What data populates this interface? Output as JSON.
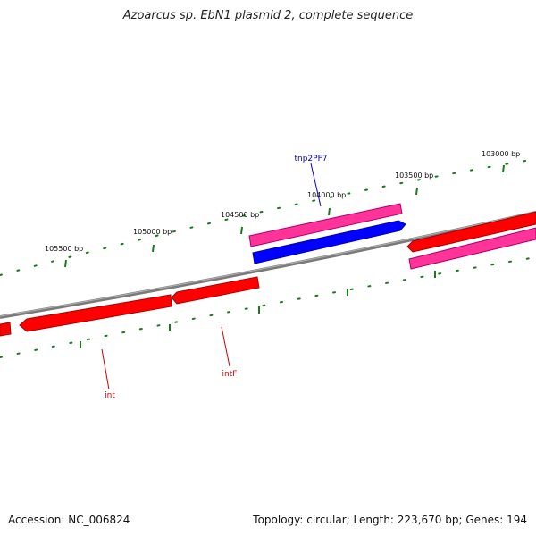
{
  "header": {
    "title": "Azoarcus sp. EbN1 plasmid 2, complete sequence"
  },
  "footer": {
    "accession": "Accession: NC_006824",
    "summary": "Topology: circular; Length: 223,670 bp; Genes: 194"
  },
  "ticks": [
    {
      "label": "103000 bp"
    },
    {
      "label": "103500 bp"
    },
    {
      "label": "104000 bp"
    },
    {
      "label": "104500 bp"
    },
    {
      "label": "105000 bp"
    },
    {
      "label": "105500 bp"
    }
  ],
  "gene_labels": [
    {
      "label": "tnp2PF7",
      "color": "#0000cc"
    },
    {
      "label": "intF",
      "color": "#cc0000"
    },
    {
      "label": "int",
      "color": "#cc0000"
    }
  ],
  "colors": {
    "backbone": "#808080",
    "tick": "#1a7a1a",
    "gene_red": "#ff0000",
    "gene_pink": "#ff3399",
    "gene_blue": "#0000ff",
    "label_blue": "#0000cc",
    "label_red": "#cc0000"
  }
}
